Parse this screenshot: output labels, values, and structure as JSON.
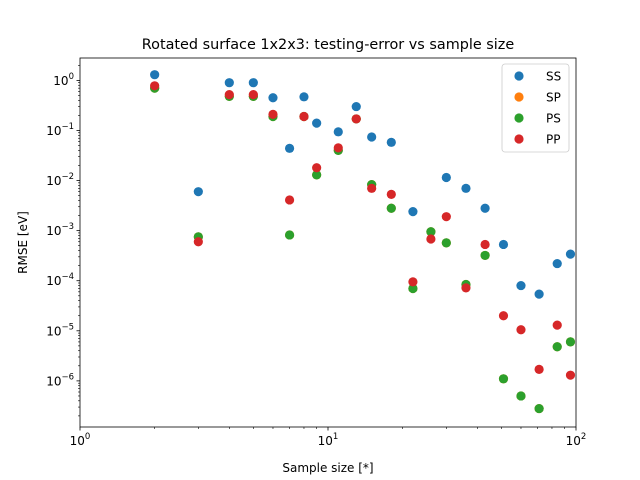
{
  "chart_data": {
    "type": "scatter",
    "title": "Rotated surface 1x2x3: testing-error vs sample size",
    "xlabel": "Sample size [*]",
    "ylabel": "RMSE [eV]",
    "xscale": "log",
    "yscale": "log",
    "xlim": [
      1,
      100
    ],
    "ylim": [
      1.2e-07,
      2.8
    ],
    "x_ticks": [
      {
        "value": 1,
        "label_base": "10",
        "label_exp": "0"
      },
      {
        "value": 10,
        "label_base": "10",
        "label_exp": "1"
      },
      {
        "value": 100,
        "label_base": "10",
        "label_exp": "2"
      }
    ],
    "y_ticks": [
      {
        "value": 1e-06,
        "label_base": "10",
        "label_exp": "−6"
      },
      {
        "value": 1e-05,
        "label_base": "10",
        "label_exp": "−5"
      },
      {
        "value": 0.0001,
        "label_base": "10",
        "label_exp": "−4"
      },
      {
        "value": 0.001,
        "label_base": "10",
        "label_exp": "−3"
      },
      {
        "value": 0.01,
        "label_base": "10",
        "label_exp": "−2"
      },
      {
        "value": 0.1,
        "label_base": "10",
        "label_exp": "−1"
      },
      {
        "value": 1,
        "label_base": "10",
        "label_exp": "0"
      }
    ],
    "grid": false,
    "legend_position": "top-right",
    "series": [
      {
        "name": "SS",
        "color": "#1f77b4",
        "points": [
          [
            2,
            1.3
          ],
          [
            3,
            0.006
          ],
          [
            4,
            0.9
          ],
          [
            5,
            0.9
          ],
          [
            6,
            0.45
          ],
          [
            7,
            0.044
          ],
          [
            8,
            0.47
          ],
          [
            9,
            0.14
          ],
          [
            11,
            0.094
          ],
          [
            13,
            0.3
          ],
          [
            15,
            0.074
          ],
          [
            18,
            0.058
          ],
          [
            22,
            0.0024
          ],
          [
            30,
            0.0115
          ],
          [
            36,
            0.007
          ],
          [
            43,
            0.0028
          ],
          [
            51,
            0.00053
          ],
          [
            60,
            8e-05
          ],
          [
            71,
            5.4e-05
          ],
          [
            84,
            0.00022
          ],
          [
            95,
            0.00034
          ]
        ]
      },
      {
        "name": "SP",
        "color": "#ff7f0e",
        "points": [
          [
            2,
            0.7
          ],
          [
            3,
            0.00075
          ],
          [
            4,
            0.48
          ],
          [
            5,
            0.48
          ],
          [
            6,
            0.19
          ],
          [
            7,
            0.00082
          ],
          [
            8,
            0.19
          ],
          [
            9,
            0.013
          ],
          [
            11,
            0.04
          ],
          [
            13,
            0.17
          ],
          [
            15,
            0.0083
          ],
          [
            18,
            0.0028
          ],
          [
            22,
            7e-05
          ],
          [
            26,
            0.00095
          ],
          [
            30,
            0.00057
          ],
          [
            36,
            8.4e-05
          ],
          [
            43,
            0.00032
          ],
          [
            51,
            1.1e-06
          ],
          [
            60,
            5e-07
          ],
          [
            71,
            2.8e-07
          ],
          [
            84,
            4.8e-06
          ],
          [
            95,
            6e-06
          ]
        ]
      },
      {
        "name": "PS",
        "color": "#2ca02c",
        "points": [
          [
            2,
            0.7
          ],
          [
            3,
            0.00075
          ],
          [
            4,
            0.48
          ],
          [
            5,
            0.48
          ],
          [
            6,
            0.19
          ],
          [
            7,
            0.00082
          ],
          [
            8,
            0.19
          ],
          [
            9,
            0.013
          ],
          [
            11,
            0.04
          ],
          [
            13,
            0.17
          ],
          [
            15,
            0.0083
          ],
          [
            18,
            0.0028
          ],
          [
            22,
            7e-05
          ],
          [
            26,
            0.00095
          ],
          [
            30,
            0.00057
          ],
          [
            36,
            8.4e-05
          ],
          [
            43,
            0.00032
          ],
          [
            51,
            1.1e-06
          ],
          [
            60,
            5e-07
          ],
          [
            71,
            2.8e-07
          ],
          [
            84,
            4.8e-06
          ],
          [
            95,
            6e-06
          ]
        ]
      },
      {
        "name": "PP",
        "color": "#d62728",
        "points": [
          [
            2,
            0.78
          ],
          [
            3,
            0.0006
          ],
          [
            4,
            0.52
          ],
          [
            5,
            0.52
          ],
          [
            6,
            0.21
          ],
          [
            7,
            0.0041
          ],
          [
            8,
            0.19
          ],
          [
            9,
            0.018
          ],
          [
            11,
            0.045
          ],
          [
            13,
            0.17
          ],
          [
            15,
            0.007
          ],
          [
            18,
            0.0053
          ],
          [
            22,
            9.5e-05
          ],
          [
            26,
            0.00068
          ],
          [
            30,
            0.0019
          ],
          [
            36,
            7.2e-05
          ],
          [
            43,
            0.00053
          ],
          [
            51,
            2e-05
          ],
          [
            60,
            1.05e-05
          ],
          [
            71,
            1.7e-06
          ],
          [
            84,
            1.3e-05
          ],
          [
            95,
            1.3e-06
          ]
        ]
      }
    ]
  }
}
